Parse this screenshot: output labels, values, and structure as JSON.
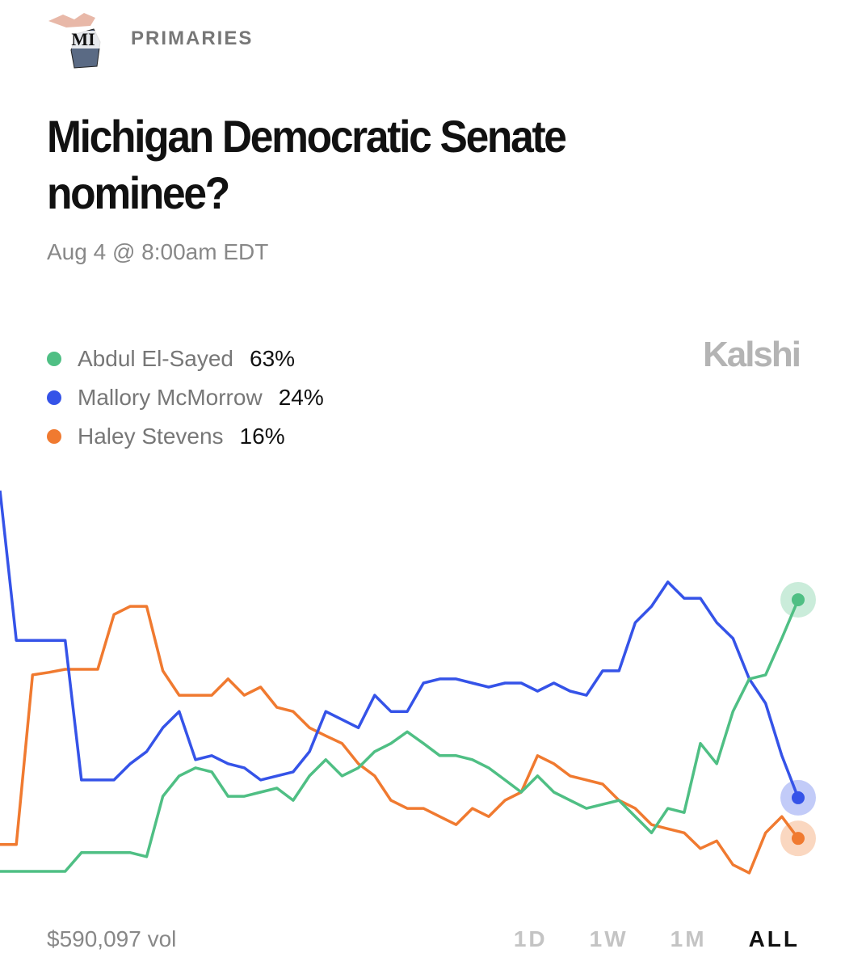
{
  "header": {
    "icon_label": "MI",
    "section": "PRIMARIES"
  },
  "chart_data": {
    "type": "line",
    "title": "Michigan Democratic Senate nominee?",
    "subtitle": "Aug 4 @ 8:00am EDT",
    "brand": "Kalshi",
    "volume": "$590,097 vol",
    "ranges": [
      "1D",
      "1W",
      "1M",
      "ALL"
    ],
    "active_range": "ALL",
    "ylim": [
      6,
      85.6
    ],
    "series": [
      {
        "name": "Abdul El-Sayed",
        "color": "#4fbf84",
        "values": [
          9.5,
          9.5,
          9.5,
          9.5,
          9.5,
          13.2,
          13.2,
          13.2,
          13.2,
          12.4,
          24.3,
          28.3,
          29.9,
          29.1,
          24.3,
          24.3,
          25.1,
          25.9,
          23.5,
          28.3,
          31.5,
          28.3,
          29.9,
          33.1,
          34.7,
          37,
          34.7,
          32.3,
          32.3,
          31.5,
          29.9,
          27.5,
          25.1,
          28.3,
          25.1,
          23.5,
          21.9,
          22.7,
          23.5,
          20.3,
          17.1,
          21.9,
          21.1,
          34.7,
          30.7,
          41,
          47.4,
          48.2,
          55.4,
          63
        ],
        "value_labels": [
          null,
          null,
          null,
          null,
          null,
          null,
          null,
          null,
          null,
          null,
          null,
          null,
          null,
          null,
          null,
          null,
          null,
          null,
          null,
          null,
          null,
          null,
          null,
          null,
          null,
          null,
          null,
          null,
          null,
          null,
          null,
          null,
          null,
          null,
          null,
          null,
          null,
          null,
          null,
          null,
          null,
          null,
          null,
          null,
          null,
          null,
          null,
          null,
          null,
          "63%"
        ]
      },
      {
        "name": "Mallory McMorrow",
        "color": "#3553e8",
        "values": [
          84.5,
          55,
          55,
          55,
          55,
          27.5,
          27.5,
          27.5,
          30.7,
          33.1,
          37.8,
          41,
          31.5,
          32.3,
          30.7,
          29.9,
          27.5,
          28.3,
          29.1,
          33.1,
          41,
          39.4,
          37.8,
          44.2,
          41,
          41,
          46.6,
          47.4,
          47.4,
          46.6,
          45.8,
          46.6,
          46.6,
          45,
          46.6,
          45,
          44.2,
          49,
          49,
          58.5,
          61.7,
          66.5,
          63.3,
          63.3,
          58.5,
          55.4,
          47.4,
          42.6,
          32.3,
          24
        ],
        "value_labels": [
          null,
          null,
          null,
          null,
          null,
          null,
          null,
          null,
          null,
          null,
          null,
          null,
          null,
          null,
          null,
          null,
          null,
          null,
          null,
          null,
          null,
          null,
          null,
          null,
          null,
          null,
          null,
          null,
          null,
          null,
          null,
          null,
          null,
          null,
          null,
          null,
          null,
          null,
          null,
          null,
          null,
          null,
          null,
          null,
          null,
          null,
          null,
          null,
          null,
          "24%"
        ]
      },
      {
        "name": "Haley Stevens",
        "color": "#f07a30",
        "values": [
          14.8,
          14.8,
          48.2,
          48.7,
          49.3,
          49.3,
          49.3,
          60.1,
          61.7,
          61.7,
          49,
          44.2,
          44.2,
          44.2,
          47.4,
          44.2,
          45.8,
          41.8,
          41,
          37.8,
          36.2,
          34.7,
          30.7,
          28.3,
          23.5,
          21.9,
          21.9,
          20.3,
          18.7,
          21.9,
          20.3,
          23.5,
          25.1,
          32.3,
          30.7,
          28.3,
          27.5,
          26.7,
          23.5,
          21.9,
          18.7,
          17.9,
          17.1,
          14,
          15.5,
          10.8,
          9.2,
          17.1,
          20.3,
          16
        ],
        "value_labels": [
          null,
          null,
          null,
          null,
          null,
          null,
          null,
          null,
          null,
          null,
          null,
          null,
          null,
          null,
          null,
          null,
          null,
          null,
          null,
          null,
          null,
          null,
          null,
          null,
          null,
          null,
          null,
          null,
          null,
          null,
          null,
          null,
          null,
          null,
          null,
          null,
          null,
          null,
          null,
          null,
          null,
          null,
          null,
          null,
          null,
          null,
          null,
          null,
          null,
          "16%"
        ]
      }
    ]
  }
}
